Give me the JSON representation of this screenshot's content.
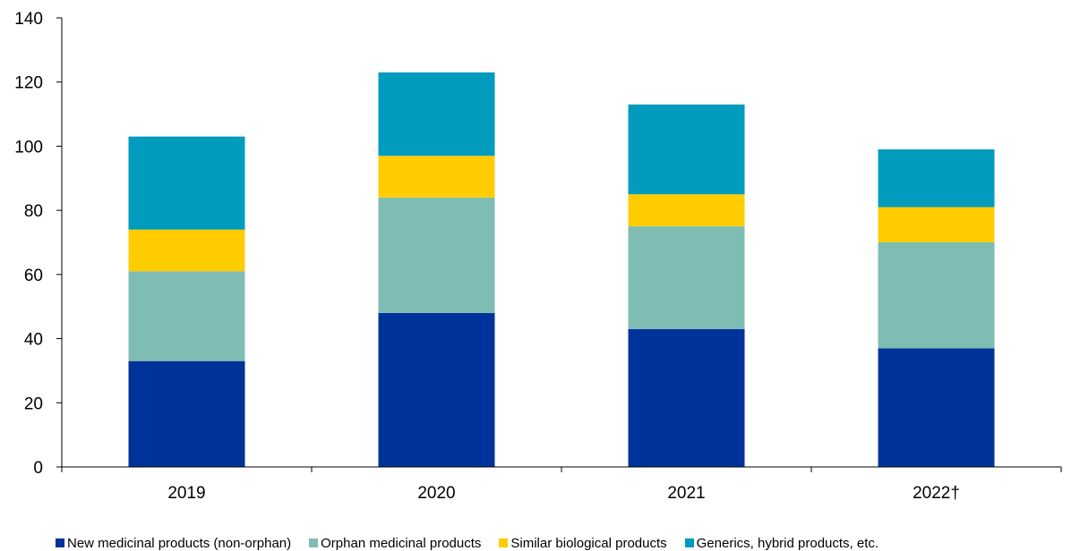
{
  "chart_data": {
    "type": "bar",
    "stacked": true,
    "categories": [
      "2019",
      "2020",
      "2021",
      "2022†"
    ],
    "series": [
      {
        "name": "New medicinal products (non-orphan)",
        "values": [
          33,
          48,
          43,
          37
        ],
        "color": "#003399"
      },
      {
        "name": "Orphan medicinal products",
        "values": [
          28,
          36,
          32,
          33
        ],
        "color": "#7fbcb4"
      },
      {
        "name": "Similar biological products",
        "values": [
          13,
          13,
          10,
          11
        ],
        "color": "#ffcc00"
      },
      {
        "name": "Generics, hybrid products, etc.",
        "values": [
          29,
          26,
          28,
          18
        ],
        "color": "#009bbd"
      }
    ],
    "title": "",
    "xlabel": "",
    "ylabel": "",
    "ylim": [
      0,
      140
    ],
    "yticks": [
      0,
      20,
      40,
      60,
      80,
      100,
      120,
      140
    ],
    "grid": false,
    "legend_position": "bottom"
  }
}
